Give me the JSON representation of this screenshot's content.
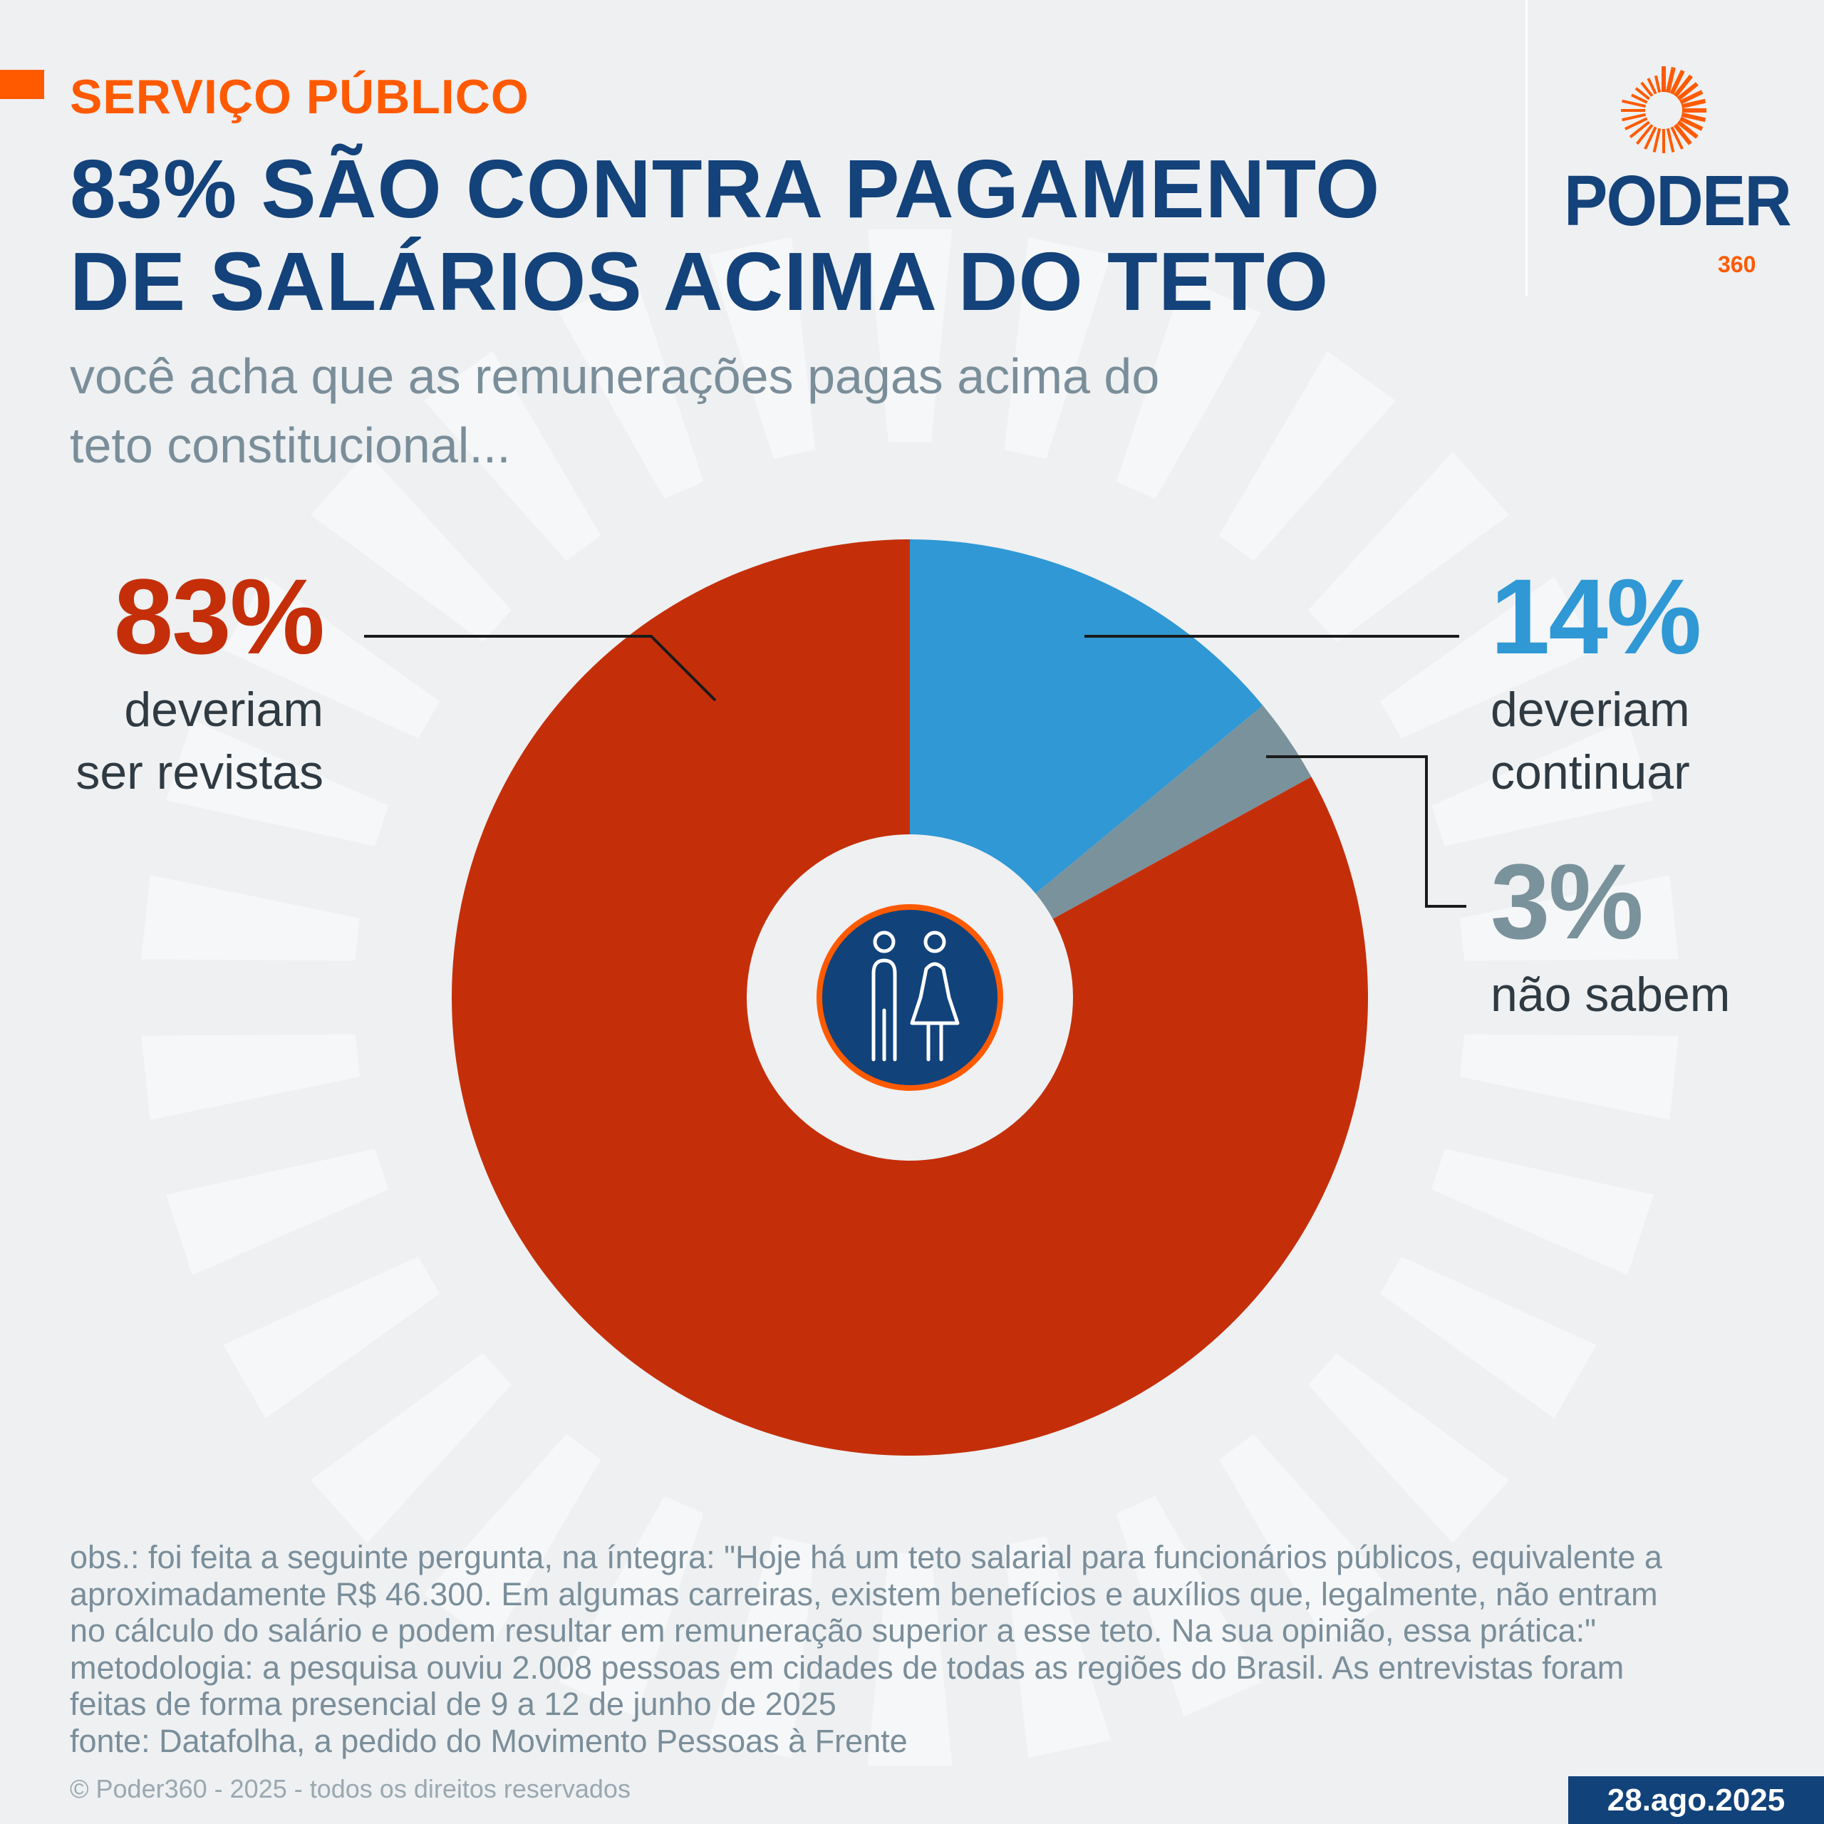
{
  "header": {
    "kicker": "SERVIÇO PÚBLICO",
    "title_line1": "83% SÃO CONTRA PAGAMENTO",
    "title_line2": "DE SALÁRIOS ACIMA DO TETO",
    "subtitle_line1": "você acha que as remunerações pagas acima do",
    "subtitle_line2": "teto constitucional..."
  },
  "logo": {
    "word": "PODER",
    "number": "360"
  },
  "chart_data": {
    "type": "pie",
    "donut": true,
    "slices": [
      {
        "label": "deveriam continuar",
        "value": 14,
        "display": "14%",
        "line1": "deveriam",
        "line2": "continuar",
        "color": "#2f98d5"
      },
      {
        "label": "não sabem",
        "value": 3,
        "display": "3%",
        "line1": "não sabem",
        "line2": "",
        "color": "#7a929c"
      },
      {
        "label": "deveriam ser revistas",
        "value": 83,
        "display": "83%",
        "line1": "deveriam",
        "line2": "ser revistas",
        "color": "#c42f0a"
      }
    ],
    "center_icon": "people-icon"
  },
  "colors": {
    "accent": "#ff5a00",
    "navy": "#14427a",
    "background": "#eef0f2"
  },
  "footer": {
    "note_lines": [
      "obs.: foi feita a seguinte pergunta, na íntegra: \"Hoje há um teto salarial para funcionários públicos, equivalente a",
      "aproximadamente R$ 46.300. Em algumas carreiras, existem benefícios e auxílios que, legalmente, não entram",
      "no cálculo do salário e podem resultar em remuneração superior a esse teto. Na sua opinião, essa prática:\"",
      "metodologia: a pesquisa ouviu 2.008 pessoas em cidades de todas as regiões do Brasil. As entrevistas foram",
      "feitas de forma presencial de 9 a 12 de junho de 2025",
      "fonte: Datafolha, a pedido do Movimento Pessoas à Frente"
    ],
    "copyright": "© Poder360 - 2025 - todos os direitos reservados",
    "date": "28.ago.2025"
  }
}
